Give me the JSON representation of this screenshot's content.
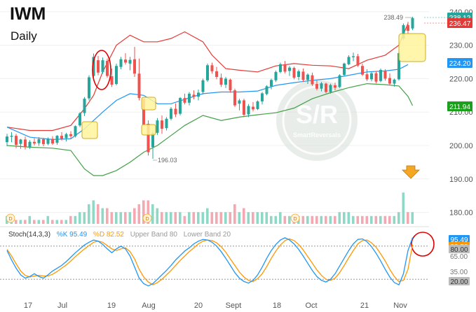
{
  "header": {
    "symbol": "IWM",
    "timeframe": "Daily"
  },
  "stoch_header": {
    "name": "Stoch(14,3,3)",
    "k_label": "%K 95.49",
    "d_label": "%D 82.52",
    "upper": "Upper Band 80",
    "lower": "Lower Band 20"
  },
  "colors": {
    "up": "#26a69a",
    "down": "#ef5350",
    "mid_band": "#2196f3",
    "upper_band": "#e53935",
    "lower_band": "#43a047",
    "k_line": "#2196f3",
    "d_line": "#ff9800",
    "highlight_fill": "#fff59d",
    "highlight_stroke": "#c9a100",
    "circle": "#e00000",
    "arrow": "#f5a623"
  },
  "logo": {
    "main": "S/R",
    "sub": "SmartReversals"
  },
  "chart_data": {
    "type": "candlestick",
    "price_axis": {
      "ticks": [
        180,
        190,
        200,
        210,
        220,
        230,
        240
      ],
      "ylim": [
        177,
        241
      ]
    },
    "x_labels": [
      "17",
      "Jul",
      "19",
      "Aug",
      "20",
      "Sept",
      "18",
      "Oct",
      "21",
      "Nov"
    ],
    "price_tags": [
      {
        "value": "238.12",
        "color": "#26a69a"
      },
      {
        "value": "236.47",
        "color": "#e53935"
      },
      {
        "value": "224.20",
        "color": "#2196f3"
      },
      {
        "value": "211.94",
        "color": "#1aa01a"
      }
    ],
    "annotations": {
      "high": "238.49",
      "low": "196.03"
    },
    "candles": [
      [
        201,
        203.5,
        199.8,
        202.7
      ],
      [
        202.6,
        204,
        201,
        202.9
      ],
      [
        202.9,
        203.5,
        199.2,
        200.2
      ],
      [
        200.5,
        202,
        199,
        201.8
      ],
      [
        201.8,
        202.7,
        198.8,
        199.5
      ],
      [
        199.6,
        201.6,
        199,
        201.1
      ],
      [
        201.1,
        202.2,
        200,
        200.6
      ],
      [
        200.7,
        202.5,
        199.9,
        201.9
      ],
      [
        201.9,
        202.3,
        199.8,
        200.4
      ],
      [
        200.5,
        202.4,
        200.1,
        202
      ],
      [
        202,
        202.8,
        200.2,
        200.6
      ],
      [
        200.8,
        203.1,
        200.2,
        202.9
      ],
      [
        202.9,
        204,
        201.5,
        202
      ],
      [
        202.2,
        203.8,
        201.2,
        203.4
      ],
      [
        203.4,
        204.3,
        202,
        202.8
      ],
      [
        202.8,
        206,
        202.4,
        205.8
      ],
      [
        206,
        210,
        205.5,
        209.6
      ],
      [
        209.7,
        214.5,
        208.8,
        214
      ],
      [
        214.1,
        221,
        213.5,
        220.4
      ],
      [
        220.8,
        227.5,
        220,
        226.5
      ],
      [
        225.5,
        226.8,
        221,
        221.8
      ],
      [
        222,
        226.3,
        221.5,
        225.5
      ],
      [
        225.3,
        226,
        220.3,
        220.8
      ],
      [
        220.7,
        223,
        217.5,
        218.2
      ],
      [
        218.4,
        224.5,
        218,
        223.8
      ],
      [
        223.5,
        226.5,
        222.8,
        225.8
      ],
      [
        225.7,
        227.6,
        224.2,
        224.8
      ],
      [
        224.5,
        226.5,
        222.5,
        225.6
      ],
      [
        225.8,
        229.5,
        220.5,
        221.5
      ],
      [
        221.5,
        226,
        213.5,
        214.2
      ],
      [
        214,
        214.2,
        206,
        206.2
      ],
      [
        206.5,
        207.5,
        197,
        198
      ],
      [
        199.5,
        204.5,
        196.03,
        203.8
      ],
      [
        203.8,
        208.2,
        203.2,
        207.5
      ],
      [
        207.5,
        209,
        203.5,
        205
      ],
      [
        205.2,
        208.5,
        204.5,
        208
      ],
      [
        208,
        211.5,
        207.5,
        211
      ],
      [
        211,
        212.6,
        208.5,
        209.3
      ],
      [
        209.5,
        214.5,
        209,
        214.2
      ],
      [
        214.2,
        215.5,
        212.3,
        212.8
      ],
      [
        212.8,
        216,
        212,
        215.5
      ],
      [
        215.2,
        216.5,
        213.8,
        214.6
      ],
      [
        214.6,
        216.7,
        213.5,
        215.8
      ],
      [
        216,
        220,
        215.3,
        219.5
      ],
      [
        219.5,
        224.5,
        219,
        224
      ],
      [
        224,
        224.8,
        221.5,
        222.2
      ],
      [
        222.2,
        223.5,
        219.8,
        220.5
      ],
      [
        220.3,
        221.5,
        217.5,
        218.2
      ],
      [
        218.2,
        220.5,
        217.2,
        220
      ],
      [
        219.7,
        220,
        215.8,
        216.5
      ],
      [
        216.5,
        217,
        211.5,
        212
      ],
      [
        212.5,
        214,
        210.5,
        213.5
      ],
      [
        213.5,
        214,
        208.5,
        209.2
      ],
      [
        209.3,
        212.4,
        208.5,
        211.8
      ],
      [
        211.6,
        213,
        210.2,
        210.8
      ],
      [
        210.9,
        213.5,
        210.6,
        213.2
      ],
      [
        213.2,
        216,
        212.3,
        215.6
      ],
      [
        215.4,
        218,
        215,
        217.7
      ],
      [
        217.7,
        220,
        216.8,
        219.6
      ],
      [
        219.5,
        222.4,
        219,
        222
      ],
      [
        222,
        224.8,
        221.6,
        224.3
      ],
      [
        224.2,
        225.3,
        221.6,
        222.1
      ],
      [
        222.3,
        223.8,
        220.8,
        223.3
      ],
      [
        223.2,
        223.6,
        219.8,
        220.3
      ],
      [
        220.5,
        222.7,
        219.5,
        222.2
      ],
      [
        222.1,
        223,
        219,
        219.6
      ],
      [
        219.6,
        221.6,
        218.4,
        221.2
      ],
      [
        221,
        221.8,
        217.8,
        218.3
      ],
      [
        218.4,
        219.5,
        216.5,
        217
      ],
      [
        217,
        219,
        216.2,
        218.6
      ],
      [
        218.5,
        218.8,
        215.6,
        216
      ],
      [
        216,
        218.5,
        215.5,
        218.1
      ],
      [
        218,
        218.8,
        216.5,
        217.3
      ],
      [
        217.5,
        221.3,
        217.2,
        221
      ],
      [
        221.1,
        224.8,
        220.8,
        224.5
      ],
      [
        224.3,
        227,
        224,
        226.5
      ],
      [
        226.4,
        227.8,
        225.2,
        226.7
      ],
      [
        226.7,
        227.4,
        223.5,
        223.9
      ],
      [
        223.8,
        224.5,
        220.8,
        221.2
      ],
      [
        221.3,
        222.8,
        219.3,
        219.8
      ],
      [
        219.8,
        222,
        219.2,
        221.6
      ],
      [
        221.6,
        222.2,
        218.6,
        219.1
      ],
      [
        219.3,
        223,
        218.9,
        222.6
      ],
      [
        222.4,
        222.8,
        219.4,
        220
      ],
      [
        220.2,
        221.6,
        218,
        218.5
      ],
      [
        218.5,
        220,
        217.6,
        219.7
      ],
      [
        219.8,
        228,
        219.4,
        227.6
      ],
      [
        232,
        236.5,
        231.5,
        236
      ],
      [
        236,
        237,
        233.5,
        234.3
      ],
      [
        235,
        238.49,
        234.5,
        238.12
      ]
    ],
    "bollinger": {
      "upper": [
        [
          0,
          205.5
        ],
        [
          5,
          204.5
        ],
        [
          10,
          204.5
        ],
        [
          14,
          206
        ],
        [
          17,
          211
        ],
        [
          19,
          215
        ],
        [
          21,
          222
        ],
        [
          24,
          230
        ],
        [
          27,
          233
        ],
        [
          30,
          231
        ],
        [
          33,
          231
        ],
        [
          36,
          232
        ],
        [
          39,
          234
        ],
        [
          43,
          231
        ],
        [
          45,
          227
        ],
        [
          48,
          223
        ],
        [
          51,
          222.5
        ],
        [
          55,
          222
        ],
        [
          59,
          223.8
        ],
        [
          63,
          224.5
        ],
        [
          67,
          224
        ],
        [
          71,
          223.8
        ],
        [
          75,
          223
        ],
        [
          79,
          225.5
        ],
        [
          83,
          227
        ],
        [
          86,
          230
        ],
        [
          88,
          236.5
        ]
      ],
      "middle": [
        [
          0,
          205.5
        ],
        [
          5,
          202.5
        ],
        [
          10,
          201.8
        ],
        [
          14,
          202
        ],
        [
          17,
          205
        ],
        [
          19,
          207.5
        ],
        [
          21,
          210
        ],
        [
          24,
          213.5
        ],
        [
          27,
          215.5
        ],
        [
          30,
          215
        ],
        [
          33,
          212.5
        ],
        [
          36,
          212.5
        ],
        [
          39,
          213.8
        ],
        [
          43,
          215.5
        ],
        [
          47,
          216
        ],
        [
          51,
          216
        ],
        [
          55,
          216.3
        ],
        [
          59,
          218
        ],
        [
          63,
          218.8
        ],
        [
          67,
          219.5
        ],
        [
          71,
          220
        ],
        [
          75,
          221
        ],
        [
          79,
          222
        ],
        [
          83,
          222.3
        ],
        [
          86,
          222.8
        ],
        [
          88,
          224.2
        ]
      ],
      "lower": [
        [
          0,
          200
        ],
        [
          5,
          199.5
        ],
        [
          10,
          199.2
        ],
        [
          14,
          198.5
        ],
        [
          17,
          193
        ],
        [
          19,
          191
        ],
        [
          21,
          191
        ],
        [
          24,
          192.5
        ],
        [
          27,
          195
        ],
        [
          30,
          198
        ],
        [
          33,
          200
        ],
        [
          36,
          203
        ],
        [
          39,
          206
        ],
        [
          43,
          209
        ],
        [
          47,
          207.5
        ],
        [
          51,
          208.5
        ],
        [
          55,
          209.2
        ],
        [
          59,
          209.8
        ],
        [
          63,
          211.2
        ],
        [
          67,
          214
        ],
        [
          71,
          215.8
        ],
        [
          75,
          217.3
        ],
        [
          79,
          218.5
        ],
        [
          83,
          218.2
        ],
        [
          86,
          217.8
        ],
        [
          88,
          214.7
        ],
        [
          89,
          211.94
        ]
      ]
    },
    "volume": [
      2,
      1,
      1,
      1,
      1,
      2,
      1,
      1,
      1,
      2,
      1,
      1,
      1,
      1,
      2,
      2,
      3,
      3,
      5,
      6,
      5,
      4,
      4,
      3,
      3,
      3,
      3,
      3,
      4,
      5,
      6,
      6,
      5,
      4,
      3,
      3,
      3,
      3,
      3,
      2,
      3,
      3,
      3,
      3,
      4,
      3,
      3,
      3,
      3,
      3,
      5,
      3,
      4,
      3,
      3,
      3,
      3,
      3,
      2,
      2,
      3,
      2,
      2,
      2,
      2,
      2,
      2,
      2,
      2,
      2,
      2,
      2,
      2,
      3,
      3,
      3,
      2,
      2,
      2,
      2,
      2,
      2,
      2,
      2,
      2,
      2,
      3,
      8,
      3,
      3
    ],
    "stochastic": {
      "k": [
        72,
        55,
        40,
        28,
        22,
        25,
        30,
        25,
        22,
        28,
        35,
        40,
        45,
        52,
        60,
        68,
        75,
        82,
        87,
        91,
        89,
        83,
        75,
        68,
        75,
        80,
        75,
        62,
        42,
        22,
        12,
        8,
        12,
        20,
        28,
        36,
        45,
        55,
        63,
        71,
        77,
        84,
        89,
        92,
        91,
        87,
        80,
        70,
        58,
        45,
        32,
        22,
        16,
        13,
        18,
        28,
        42,
        58,
        72,
        83,
        91,
        95,
        91,
        84,
        74,
        62,
        49,
        36,
        25,
        18,
        15,
        20,
        30,
        44,
        58,
        72,
        84,
        92,
        93,
        88,
        79,
        67,
        53,
        38,
        24,
        14,
        10,
        30,
        72,
        95.49
      ],
      "d": [
        74,
        62,
        48,
        35,
        27,
        24,
        26,
        27,
        26,
        26,
        29,
        34,
        40,
        46,
        53,
        61,
        68,
        75,
        81,
        87,
        89,
        87,
        81,
        75,
        72,
        75,
        77,
        70,
        57,
        38,
        24,
        15,
        10,
        14,
        20,
        28,
        36,
        45,
        54,
        62,
        70,
        77,
        84,
        89,
        91,
        90,
        86,
        79,
        69,
        57,
        45,
        33,
        24,
        18,
        16,
        21,
        30,
        43,
        58,
        71,
        82,
        90,
        93,
        90,
        83,
        73,
        61,
        49,
        37,
        27,
        20,
        18,
        22,
        32,
        45,
        59,
        72,
        84,
        90,
        91,
        86,
        78,
        66,
        53,
        38,
        25,
        16,
        18,
        38,
        82.52
      ],
      "upper_band": 80,
      "lower_band": 20,
      "tags": [
        {
          "value": "95.49",
          "color": "#2196f3"
        },
        {
          "value": "82.52",
          "color": "#ff9800"
        },
        {
          "value": "80.00",
          "color": "#bbbbbb"
        },
        {
          "value": "20.00",
          "color": "#bbbbbb"
        }
      ],
      "axis_ticks": [
        "65.00",
        "35.00"
      ]
    }
  }
}
